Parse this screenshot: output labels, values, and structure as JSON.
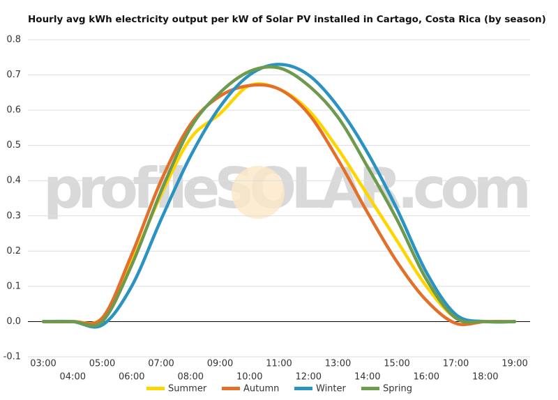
{
  "chart_data": {
    "type": "line",
    "title": "Hourly avg kWh electricity output per kW of Solar PV installed in Cartago, Costa Rica (by season)",
    "watermark": "profileSOLAR.com",
    "categories": [
      "03:00",
      "04:00",
      "05:00",
      "06:00",
      "07:00",
      "08:00",
      "09:00",
      "10:00",
      "11:00",
      "12:00",
      "13:00",
      "14:00",
      "15:00",
      "16:00",
      "17:00",
      "18:00",
      "19:00"
    ],
    "series": [
      {
        "name": "Summer",
        "color": "#ffd500",
        "values": [
          0,
          0,
          0.01,
          0.17,
          0.36,
          0.52,
          0.59,
          0.67,
          0.66,
          0.6,
          0.49,
          0.36,
          0.23,
          0.1,
          0.01,
          0,
          0
        ]
      },
      {
        "name": "Autumn",
        "color": "#e3702a",
        "values": [
          0,
          0,
          0.01,
          0.19,
          0.4,
          0.56,
          0.64,
          0.67,
          0.66,
          0.59,
          0.46,
          0.31,
          0.17,
          0.06,
          -0.005,
          0,
          0
        ]
      },
      {
        "name": "Winter",
        "color": "#2a93c2",
        "values": [
          0,
          0,
          -0.01,
          0.1,
          0.29,
          0.47,
          0.61,
          0.7,
          0.73,
          0.7,
          0.61,
          0.48,
          0.32,
          0.14,
          0.02,
          0,
          0
        ]
      },
      {
        "name": "Spring",
        "color": "#6e9a4e",
        "values": [
          0,
          0,
          0,
          0.16,
          0.37,
          0.55,
          0.65,
          0.71,
          0.72,
          0.67,
          0.58,
          0.44,
          0.29,
          0.12,
          0.01,
          0,
          0
        ]
      }
    ],
    "ylim": [
      -0.1,
      0.8
    ],
    "yticks": [
      {
        "value": -0.1,
        "label": "-0.1"
      },
      {
        "value": 0,
        "label": "0.0"
      },
      0.1,
      0.2,
      0.3,
      0.4,
      0.5,
      0.6,
      0.7,
      0.8
    ],
    "grid": true
  }
}
